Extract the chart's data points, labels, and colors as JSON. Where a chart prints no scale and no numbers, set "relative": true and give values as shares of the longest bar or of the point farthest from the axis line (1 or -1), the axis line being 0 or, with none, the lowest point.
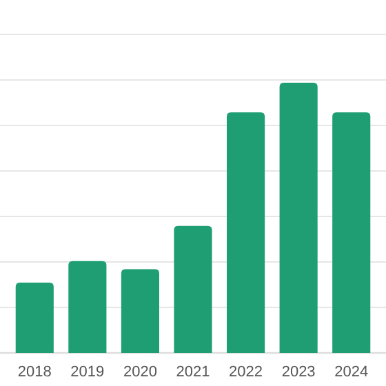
{
  "chart_data": {
    "type": "bar",
    "relative": true,
    "categories": [
      "2018",
      "2019",
      "2020",
      "2021",
      "2022",
      "2023",
      "2024"
    ],
    "values": [
      0.26,
      0.34,
      0.31,
      0.47,
      0.89,
      1,
      0.89
    ],
    "color": "#1f9e74",
    "grid": "y"
  }
}
